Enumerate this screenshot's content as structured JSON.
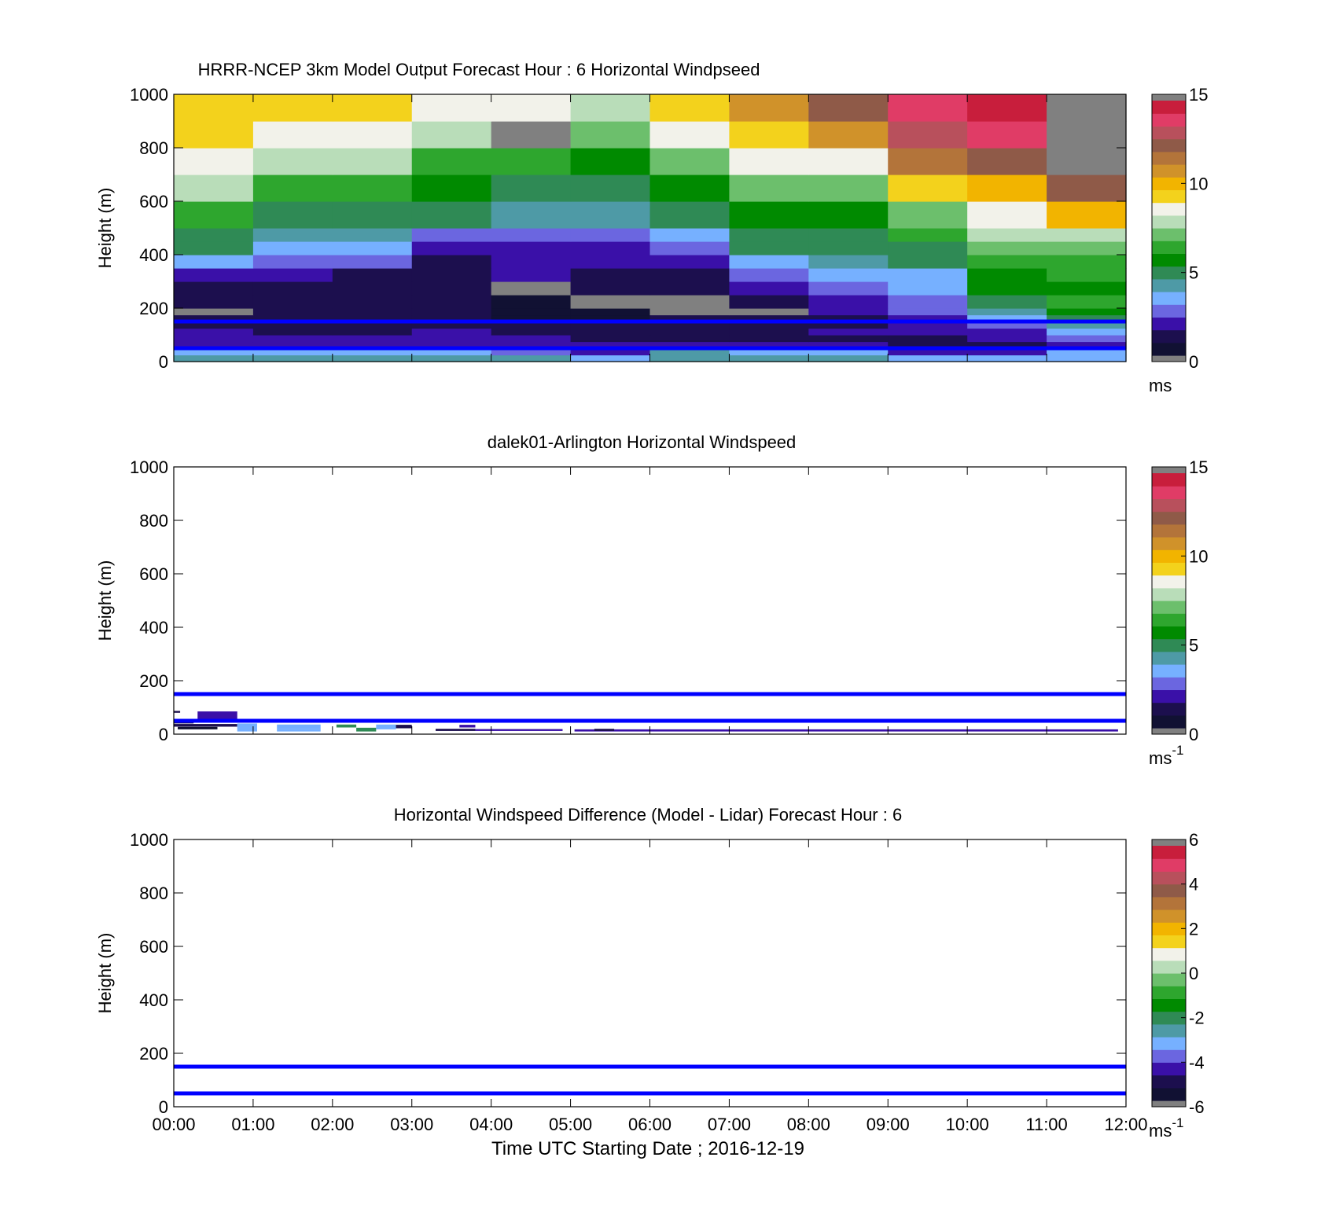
{
  "figure": {
    "xlabel": "Time UTC  Starting Date ; 2016-12-19"
  },
  "colors": {
    "scale": [
      "#111133",
      "#1c0f4e",
      "#3a10a8",
      "#6b66e0",
      "#76b0ff",
      "#4e9aa6",
      "#2f8a55",
      "#008a00",
      "#2ea62e",
      "#6cbf6c",
      "#b9ddb9",
      "#f2f2ea",
      "#f3d21c",
      "#f2b400",
      "#d0922a",
      "#b3743a",
      "#8f5a48",
      "#b8505c",
      "#e03c66",
      "#c81e3c"
    ],
    "over": "#808080",
    "reference_line": "#0000ff"
  },
  "chart_data": [
    {
      "type": "heatmap",
      "title": "HRRR-NCEP 3km Model Output   Forecast Hour : 6 Horizontal Windpseed",
      "ylabel": "Height (m)",
      "ylim": [
        0,
        1000
      ],
      "yticks": [
        "0",
        "200",
        "400",
        "600",
        "800",
        "1000"
      ],
      "xlim": [
        0,
        12
      ],
      "xticks": [
        "00:00",
        "01:00",
        "02:00",
        "03:00",
        "04:00",
        "05:00",
        "06:00",
        "07:00",
        "08:00",
        "09:00",
        "10:00",
        "11:00",
        "12:00"
      ],
      "show_xticklabels": false,
      "x_start": [
        0,
        1,
        2,
        3,
        4,
        5,
        6,
        7,
        8,
        9,
        10,
        11
      ],
      "y_edges": [
        0,
        25,
        50,
        75,
        100,
        125,
        150,
        175,
        200,
        250,
        300,
        350,
        400,
        450,
        500,
        600,
        700,
        800,
        900,
        1000
      ],
      "z": [
        [
          4.0,
          4.2,
          4.0,
          4.1,
          3.8,
          3.6,
          4.3,
          4.4,
          3.9,
          3.4,
          3.2,
          3.6
        ],
        [
          3.0,
          3.2,
          3.4,
          3.6,
          2.6,
          2.2,
          3.8,
          3.5,
          3.0,
          1.8,
          1.6,
          3.4
        ],
        [
          1.9,
          2.0,
          2.1,
          2.2,
          1.8,
          1.6,
          2.0,
          1.9,
          1.7,
          1.3,
          1.4,
          2.2
        ],
        [
          1.6,
          1.6,
          1.7,
          2.0,
          1.5,
          1.3,
          1.4,
          1.2,
          1.0,
          1.2,
          1.5,
          2.5
        ],
        [
          1.5,
          1.4,
          1.4,
          1.6,
          1.3,
          1.2,
          1.4,
          1.3,
          1.5,
          1.5,
          2.2,
          3.6
        ],
        [
          1.3,
          1.2,
          1.1,
          1.4,
          0.9,
          0.9,
          0.9,
          0.9,
          1.2,
          1.8,
          2.8,
          4.0
        ],
        [
          1.1,
          1.1,
          1.0,
          1.2,
          0.6,
          0.7,
          0.8,
          0.8,
          1.4,
          2.0,
          3.3,
          5.2
        ],
        [
          16.0,
          1.1,
          1.0,
          1.2,
          0.6,
          0.7,
          16.0,
          16.0,
          1.6,
          2.3,
          3.8,
          5.5
        ],
        [
          0.8,
          1.2,
          1.0,
          1.4,
          0.5,
          16.0,
          16.0,
          0.9,
          2.0,
          2.6,
          4.8,
          6.6
        ],
        [
          1.3,
          1.3,
          1.2,
          1.2,
          16.0,
          0.9,
          1.2,
          2.1,
          2.6,
          3.0,
          5.3,
          5.9
        ],
        [
          1.9,
          1.5,
          1.4,
          1.3,
          1.5,
          1.4,
          1.3,
          2.4,
          3.0,
          3.6,
          5.8,
          6.0
        ],
        [
          3.6,
          2.4,
          2.3,
          1.4,
          1.6,
          1.6,
          1.8,
          3.4,
          4.1,
          4.6,
          6.5,
          6.5
        ],
        [
          5.0,
          3.6,
          3.3,
          1.7,
          2.0,
          2.0,
          2.6,
          5.1,
          4.6,
          5.0,
          7.0,
          7.3
        ],
        [
          5.2,
          4.2,
          4.2,
          2.6,
          2.8,
          2.6,
          3.2,
          5.0,
          5.0,
          6.2,
          8.0,
          8.2
        ],
        [
          6.2,
          5.0,
          5.0,
          4.5,
          4.3,
          4.0,
          4.7,
          5.5,
          5.8,
          7.0,
          8.8,
          10.2
        ],
        [
          7.5,
          6.0,
          6.0,
          5.4,
          5.0,
          5.0,
          5.6,
          7.0,
          7.0,
          9.0,
          10.4,
          12.5
        ],
        [
          8.4,
          7.6,
          7.6,
          6.6,
          6.1,
          5.6,
          7.0,
          8.3,
          8.6,
          11.5,
          12.5,
          16.0
        ],
        [
          9.0,
          8.3,
          8.5,
          7.8,
          16.0,
          6.8,
          8.5,
          9.2,
          10.5,
          13.0,
          13.8,
          16.0
        ],
        [
          9.6,
          9.0,
          9.2,
          8.6,
          8.5,
          7.6,
          9.6,
          10.6,
          12.0,
          13.8,
          14.4,
          16.0
        ]
      ],
      "reference_lines_y": [
        50,
        150
      ],
      "colorbar": {
        "min": 0,
        "max": 15,
        "ticks": [
          "0",
          "5",
          "10",
          "15"
        ],
        "unit_label": "ms",
        "unit_superscript": ""
      }
    },
    {
      "type": "heatmap",
      "title": "dalek01-Arlington  Horizontal Windspeed",
      "ylabel": "Height (m)",
      "ylim": [
        0,
        1000
      ],
      "yticks": [
        "0",
        "200",
        "400",
        "600",
        "800",
        "1000"
      ],
      "xlim": [
        0,
        12
      ],
      "xticks": [
        "00:00",
        "01:00",
        "02:00",
        "03:00",
        "04:00",
        "05:00",
        "06:00",
        "07:00",
        "08:00",
        "09:00",
        "10:00",
        "11:00",
        "12:00"
      ],
      "show_xticklabels": false,
      "cells": [
        {
          "x0": 0.0,
          "x1": 0.08,
          "y0": 80,
          "y1": 87,
          "v": 1.3
        },
        {
          "x0": 0.3,
          "x1": 0.8,
          "y0": 55,
          "y1": 85,
          "v": 1.6
        },
        {
          "x0": 0.0,
          "x1": 0.25,
          "y0": 40,
          "y1": 48,
          "v": 0.9
        },
        {
          "x0": 0.0,
          "x1": 0.8,
          "y0": 28,
          "y1": 38,
          "v": 1.1
        },
        {
          "x0": 0.05,
          "x1": 0.55,
          "y0": 18,
          "y1": 27,
          "v": 0.7
        },
        {
          "x0": 0.8,
          "x1": 1.05,
          "y0": 10,
          "y1": 40,
          "v": 3.6
        },
        {
          "x0": 1.3,
          "x1": 1.85,
          "y0": 18,
          "y1": 36,
          "v": 3.7
        },
        {
          "x0": 1.3,
          "x1": 1.85,
          "y0": 10,
          "y1": 18,
          "v": 3.4
        },
        {
          "x0": 2.05,
          "x1": 2.3,
          "y0": 25,
          "y1": 36,
          "v": 4.7
        },
        {
          "x0": 2.3,
          "x1": 2.55,
          "y0": 10,
          "y1": 24,
          "v": 5.2
        },
        {
          "x0": 2.55,
          "x1": 2.8,
          "y0": 18,
          "y1": 36,
          "v": 3.3
        },
        {
          "x0": 2.8,
          "x1": 3.0,
          "y0": 22,
          "y1": 35,
          "v": 1.4
        },
        {
          "x0": 3.3,
          "x1": 3.8,
          "y0": 12,
          "y1": 20,
          "v": 1.3
        },
        {
          "x0": 3.6,
          "x1": 3.8,
          "y0": 25,
          "y1": 35,
          "v": 1.5
        },
        {
          "x0": 3.8,
          "x1": 4.9,
          "y0": 12,
          "y1": 19,
          "v": 1.7
        },
        {
          "x0": 5.05,
          "x1": 11.9,
          "y0": 10,
          "y1": 18,
          "v": 2.2
        },
        {
          "x0": 5.3,
          "x1": 5.55,
          "y0": 12,
          "y1": 20,
          "v": 1.3
        }
      ],
      "reference_lines_y": [
        50,
        150
      ],
      "colorbar": {
        "min": 0,
        "max": 15,
        "ticks": [
          "0",
          "5",
          "10",
          "15"
        ],
        "unit_label": "ms",
        "unit_superscript": "-1"
      }
    },
    {
      "type": "heatmap",
      "title": "Horizontal Windspeed Difference (Model - Lidar) Forecast Hour : 6",
      "ylabel": "Height (m)",
      "ylim": [
        0,
        1000
      ],
      "yticks": [
        "0",
        "200",
        "400",
        "600",
        "800",
        "1000"
      ],
      "xlim": [
        0,
        12
      ],
      "xticks": [
        "00:00",
        "01:00",
        "02:00",
        "03:00",
        "04:00",
        "05:00",
        "06:00",
        "07:00",
        "08:00",
        "09:00",
        "10:00",
        "11:00",
        "12:00"
      ],
      "show_xticklabels": true,
      "cells": [],
      "reference_lines_y": [
        50,
        150
      ],
      "colorbar": {
        "min": -6,
        "max": 6,
        "ticks": [
          "-6",
          "-4",
          "-2",
          "0",
          "2",
          "4",
          "6"
        ],
        "unit_label": "ms",
        "unit_superscript": "-1"
      }
    }
  ]
}
